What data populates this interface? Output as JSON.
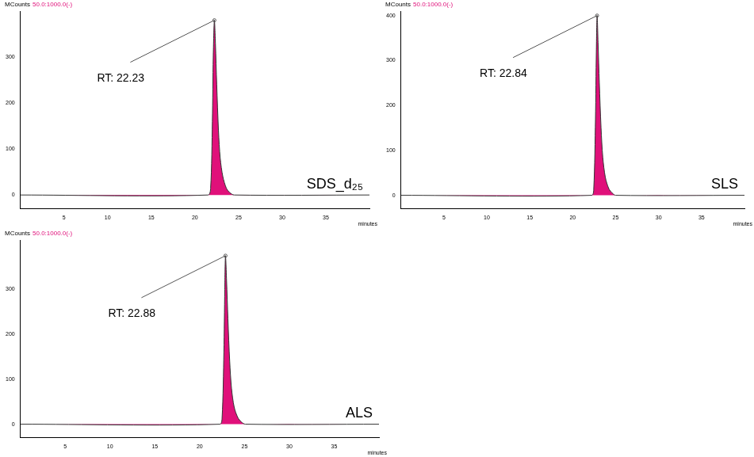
{
  "chart_data": [
    {
      "type": "line",
      "title": "SDS_d₂₅",
      "y_label": "MCounts",
      "subtitle": "50.0:1000.0(-)",
      "x_label": "minutes",
      "x": [
        0,
        21.5,
        21.8,
        22.0,
        22.1,
        22.23,
        22.35,
        22.5,
        22.7,
        22.9,
        23.2,
        23.6,
        24.0,
        24.5,
        40
      ],
      "values": [
        0,
        0,
        15,
        160,
        300,
        380,
        330,
        240,
        140,
        80,
        40,
        15,
        5,
        0,
        0
      ],
      "color": "#e0107a",
      "xlim": [
        0,
        40
      ],
      "xticks": [
        5,
        10,
        15,
        20,
        25,
        30,
        35
      ],
      "ylim": [
        -30,
        400
      ],
      "yticks": [
        0,
        100,
        200,
        300
      ],
      "grid": false,
      "annotations": [
        {
          "text": "RT: 22.23",
          "x": 22.23,
          "y": 380
        }
      ]
    },
    {
      "type": "line",
      "title": "SLS",
      "y_label": "MCounts",
      "subtitle": "50.0:1000.0(-)",
      "x_label": "minutes",
      "x": [
        0,
        22.2,
        22.45,
        22.65,
        22.75,
        22.84,
        22.95,
        23.1,
        23.3,
        23.5,
        23.8,
        24.2,
        24.6,
        25.0,
        40
      ],
      "values": [
        0,
        0,
        15,
        170,
        320,
        400,
        340,
        250,
        150,
        85,
        40,
        15,
        5,
        0,
        0
      ],
      "color": "#e0107a",
      "xlim": [
        0,
        40
      ],
      "xticks": [
        5,
        10,
        15,
        20,
        25,
        30,
        35
      ],
      "ylim": [
        -30,
        410
      ],
      "yticks": [
        0,
        100,
        200,
        300,
        400
      ],
      "grid": false,
      "annotations": [
        {
          "text": "RT: 22.84",
          "x": 22.84,
          "y": 400
        }
      ]
    },
    {
      "type": "line",
      "title": "ALS",
      "y_label": "MCounts",
      "subtitle": "50.0:1000.0(-)",
      "x_label": "minutes",
      "x": [
        0,
        22.25,
        22.5,
        22.7,
        22.8,
        22.88,
        23.0,
        23.15,
        23.35,
        23.55,
        23.85,
        24.25,
        24.65,
        25.1,
        40
      ],
      "values": [
        0,
        0,
        15,
        160,
        300,
        375,
        320,
        235,
        140,
        80,
        38,
        15,
        5,
        0,
        0
      ],
      "color": "#e0107a",
      "xlim": [
        0,
        40
      ],
      "xticks": [
        5,
        10,
        15,
        20,
        25,
        30,
        35
      ],
      "ylim": [
        -30,
        410
      ],
      "yticks": [
        0,
        100,
        200,
        300
      ],
      "grid": false,
      "annotations": [
        {
          "text": "RT: 22.88",
          "x": 22.88,
          "y": 375
        }
      ]
    }
  ]
}
